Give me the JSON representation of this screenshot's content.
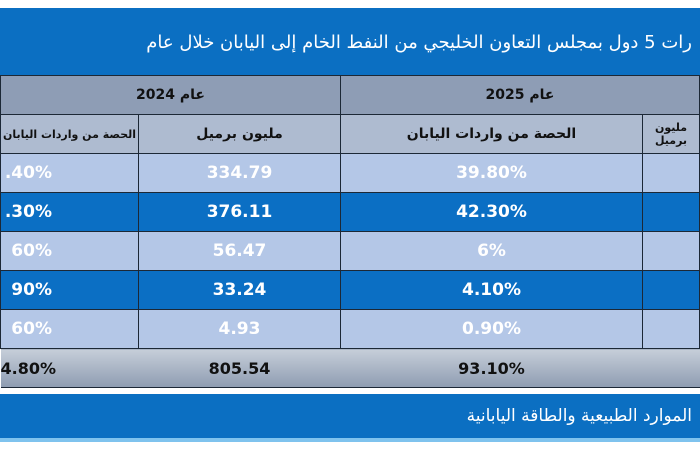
{
  "title": "رات 5 دول بمجلس التعاون الخليجي من النفط الخام إلى اليابان خلال عام",
  "headers": {
    "year_2024": "عام 2024",
    "year_2025": "عام 2025",
    "share_2024": "الحصة من واردات اليابان",
    "mbbl_2024": "مليون برميل",
    "share_2025": "الحصة من واردات اليابان",
    "mbbl_2025": "مليون برميل"
  },
  "rows": [
    {
      "share_2024": ".40%",
      "mbbl_2024": "334.79",
      "share_2025": "39.80%"
    },
    {
      "share_2024": ".30%",
      "mbbl_2024": "376.11",
      "share_2025": "42.30%"
    },
    {
      "share_2024": "60%",
      "mbbl_2024": "56.47",
      "share_2025": "6%"
    },
    {
      "share_2024": "90%",
      "mbbl_2024": "33.24",
      "share_2025": "4.10%"
    },
    {
      "share_2024": "60%",
      "mbbl_2024": "4.93",
      "share_2025": "0.90%"
    }
  ],
  "total": {
    "share_2024": "4.80%",
    "mbbl_2024": "805.54",
    "share_2025": "93.10%"
  },
  "footer": "الموارد الطبيعية والطاقة اليابانية",
  "colors": {
    "title_bg": "#0b6fc2",
    "row_light": "#b4c7e7",
    "row_dark": "#0b6fc4",
    "header_gray": "#8e9db5"
  }
}
